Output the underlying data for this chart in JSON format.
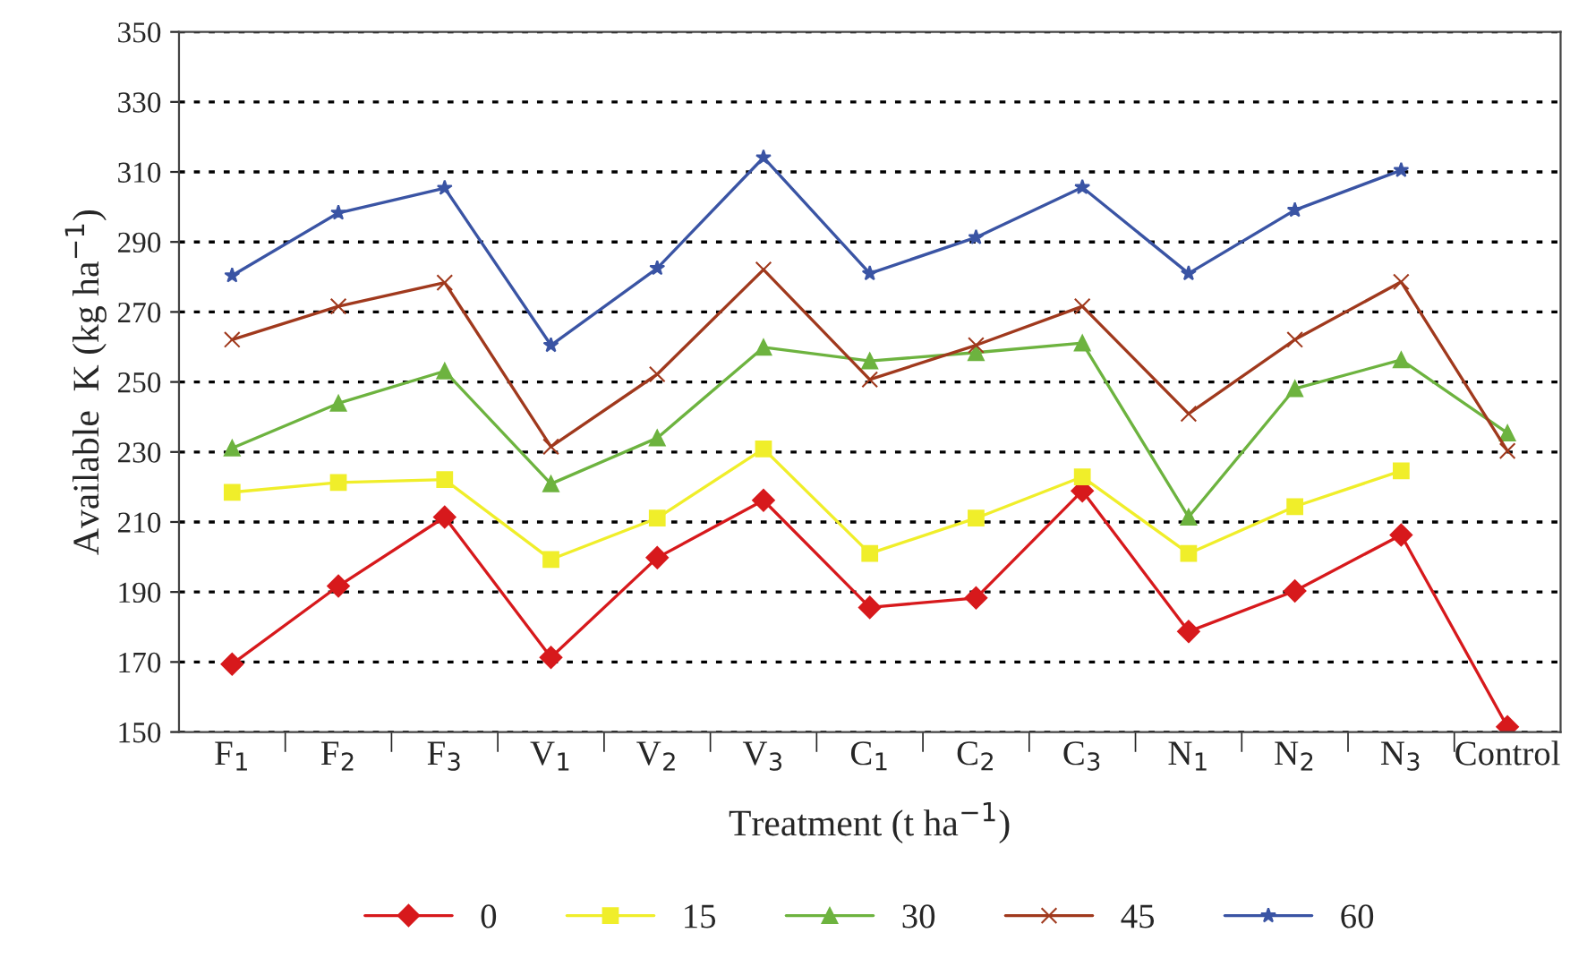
{
  "chart_data": {
    "type": "line",
    "xlabel": "Treatment (t ha$^{−1}$)",
    "ylabel": "Available  K (kg ha$^{−1}$)",
    "categories": [
      "F$_{1}$",
      "F$_{2}$",
      "F$_{3}$",
      "V$_{1}$",
      "V$_{2}$",
      "V$_{3}$",
      "C$_{1}$",
      "C$_{2}$",
      "C$_{3}$",
      "N$_{1}$",
      "N$_{2}$",
      "N$_{3}$",
      "Control"
    ],
    "series": [
      {
        "name": "0",
        "color": "#d7191c",
        "marker": "diamond",
        "values": [
          169.4,
          191.7,
          211.4,
          171.3,
          199.8,
          216.2,
          185.6,
          188.3,
          218.9,
          178.7,
          190.3,
          206.3,
          151.5
        ]
      },
      {
        "name": "15",
        "color": "#f0ee2a",
        "marker": "square",
        "values": [
          218.5,
          221.3,
          222.1,
          199.3,
          211.1,
          230.9,
          201.0,
          211.1,
          222.9,
          201.0,
          214.4,
          224.6,
          null
        ]
      },
      {
        "name": "30",
        "color": "#6db33f",
        "marker": "triangle",
        "values": [
          231.1,
          243.9,
          253.1,
          220.9,
          234.0,
          259.9,
          256.0,
          258.4,
          261.1,
          211.4,
          248.1,
          256.3,
          235.4
        ]
      },
      {
        "name": "45",
        "color": "#a0391d",
        "marker": "cross",
        "values": [
          262.1,
          271.6,
          278.4,
          231.5,
          252.2,
          282.1,
          250.7,
          260.5,
          271.6,
          240.9,
          262.1,
          278.6,
          230.3
        ]
      },
      {
        "name": "60",
        "color": "#3a54a4",
        "marker": "star",
        "values": [
          280.4,
          298.3,
          305.4,
          260.5,
          282.5,
          314.1,
          281.0,
          291.3,
          305.6,
          281.0,
          299.1,
          310.5,
          null
        ]
      }
    ],
    "ylim": [
      150,
      350
    ],
    "yticks": [
      150,
      170,
      190,
      210,
      230,
      250,
      270,
      290,
      310,
      330,
      350
    ],
    "grid": "y",
    "legend": "bottom",
    "line_style": "solid"
  }
}
